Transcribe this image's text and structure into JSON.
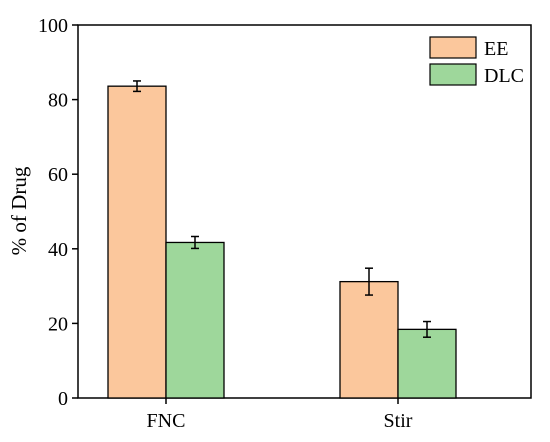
{
  "chart_data": {
    "type": "bar",
    "title": "",
    "xlabel": "",
    "ylabel": "% of Drug",
    "ylim": [
      0,
      100
    ],
    "yticks": [
      0,
      20,
      40,
      60,
      80,
      100
    ],
    "categories": [
      "FNC",
      "Stir"
    ],
    "series": [
      {
        "name": "EE",
        "color": "#FBC79C",
        "values": [
          83.6,
          31.2
        ],
        "errors": [
          1.4,
          3.6
        ]
      },
      {
        "name": "DLC",
        "color": "#9ED79B",
        "values": [
          41.7,
          18.4
        ],
        "errors": [
          1.6,
          2.1
        ]
      }
    ],
    "grid": false,
    "legend_position": "top-right"
  }
}
